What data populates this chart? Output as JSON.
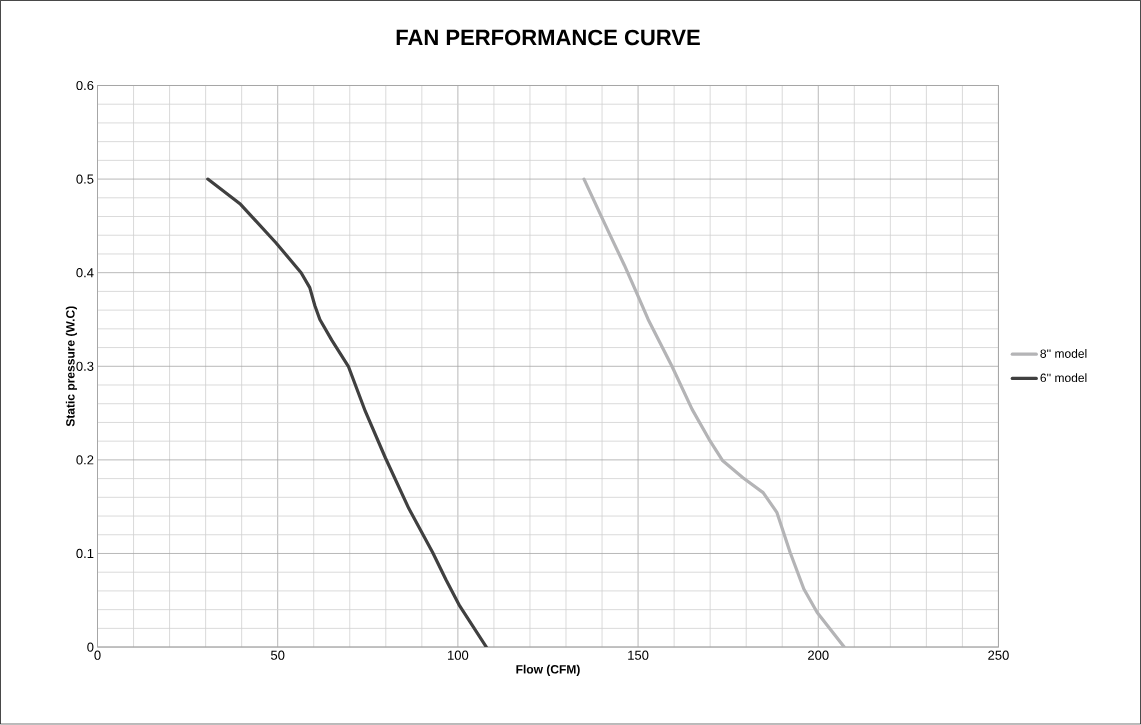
{
  "chart_data": {
    "type": "line",
    "title": "FAN PERFORMANCE CURVE",
    "xlabel": "Flow (CFM)",
    "ylabel": "Static pressure (W.C)",
    "series": [
      {
        "name": "8'' model",
        "color": "#b4b4b6",
        "x": [
          135,
          139.7,
          142.5,
          146.2,
          150,
          152.8,
          159.4,
          165,
          169.7,
          173.5,
          179.1,
          184.7,
          188.5,
          192.2,
          196,
          199.7,
          207.2
        ],
        "values": [
          0.5,
          0.461,
          0.438,
          0.408,
          0.375,
          0.35,
          0.3,
          0.254,
          0.222,
          0.199,
          0.181,
          0.165,
          0.144,
          0.101,
          0.062,
          0.037,
          0
        ]
      },
      {
        "name": "6'' model",
        "color": "#404040",
        "x": [
          30.6,
          39.7,
          49.5,
          56.5,
          58.9,
          60.3,
          61.7,
          65,
          69.6,
          74.3,
          79.9,
          86.4,
          93,
          96.7,
          100.5,
          107.9
        ],
        "values": [
          0.5,
          0.473,
          0.432,
          0.4,
          0.384,
          0.365,
          0.35,
          0.328,
          0.3,
          0.252,
          0.202,
          0.148,
          0.101,
          0.072,
          0.044,
          0
        ]
      }
    ],
    "xlim": [
      0,
      250
    ],
    "xticks": [
      0,
      50,
      100,
      150,
      200,
      250
    ],
    "ylim": [
      0,
      0.6
    ],
    "yticks": [
      0,
      0.1,
      0.2,
      0.3,
      0.4,
      0.5,
      0.6
    ],
    "grid": true,
    "legend": "right",
    "marker": "none",
    "line_style": "solid"
  }
}
